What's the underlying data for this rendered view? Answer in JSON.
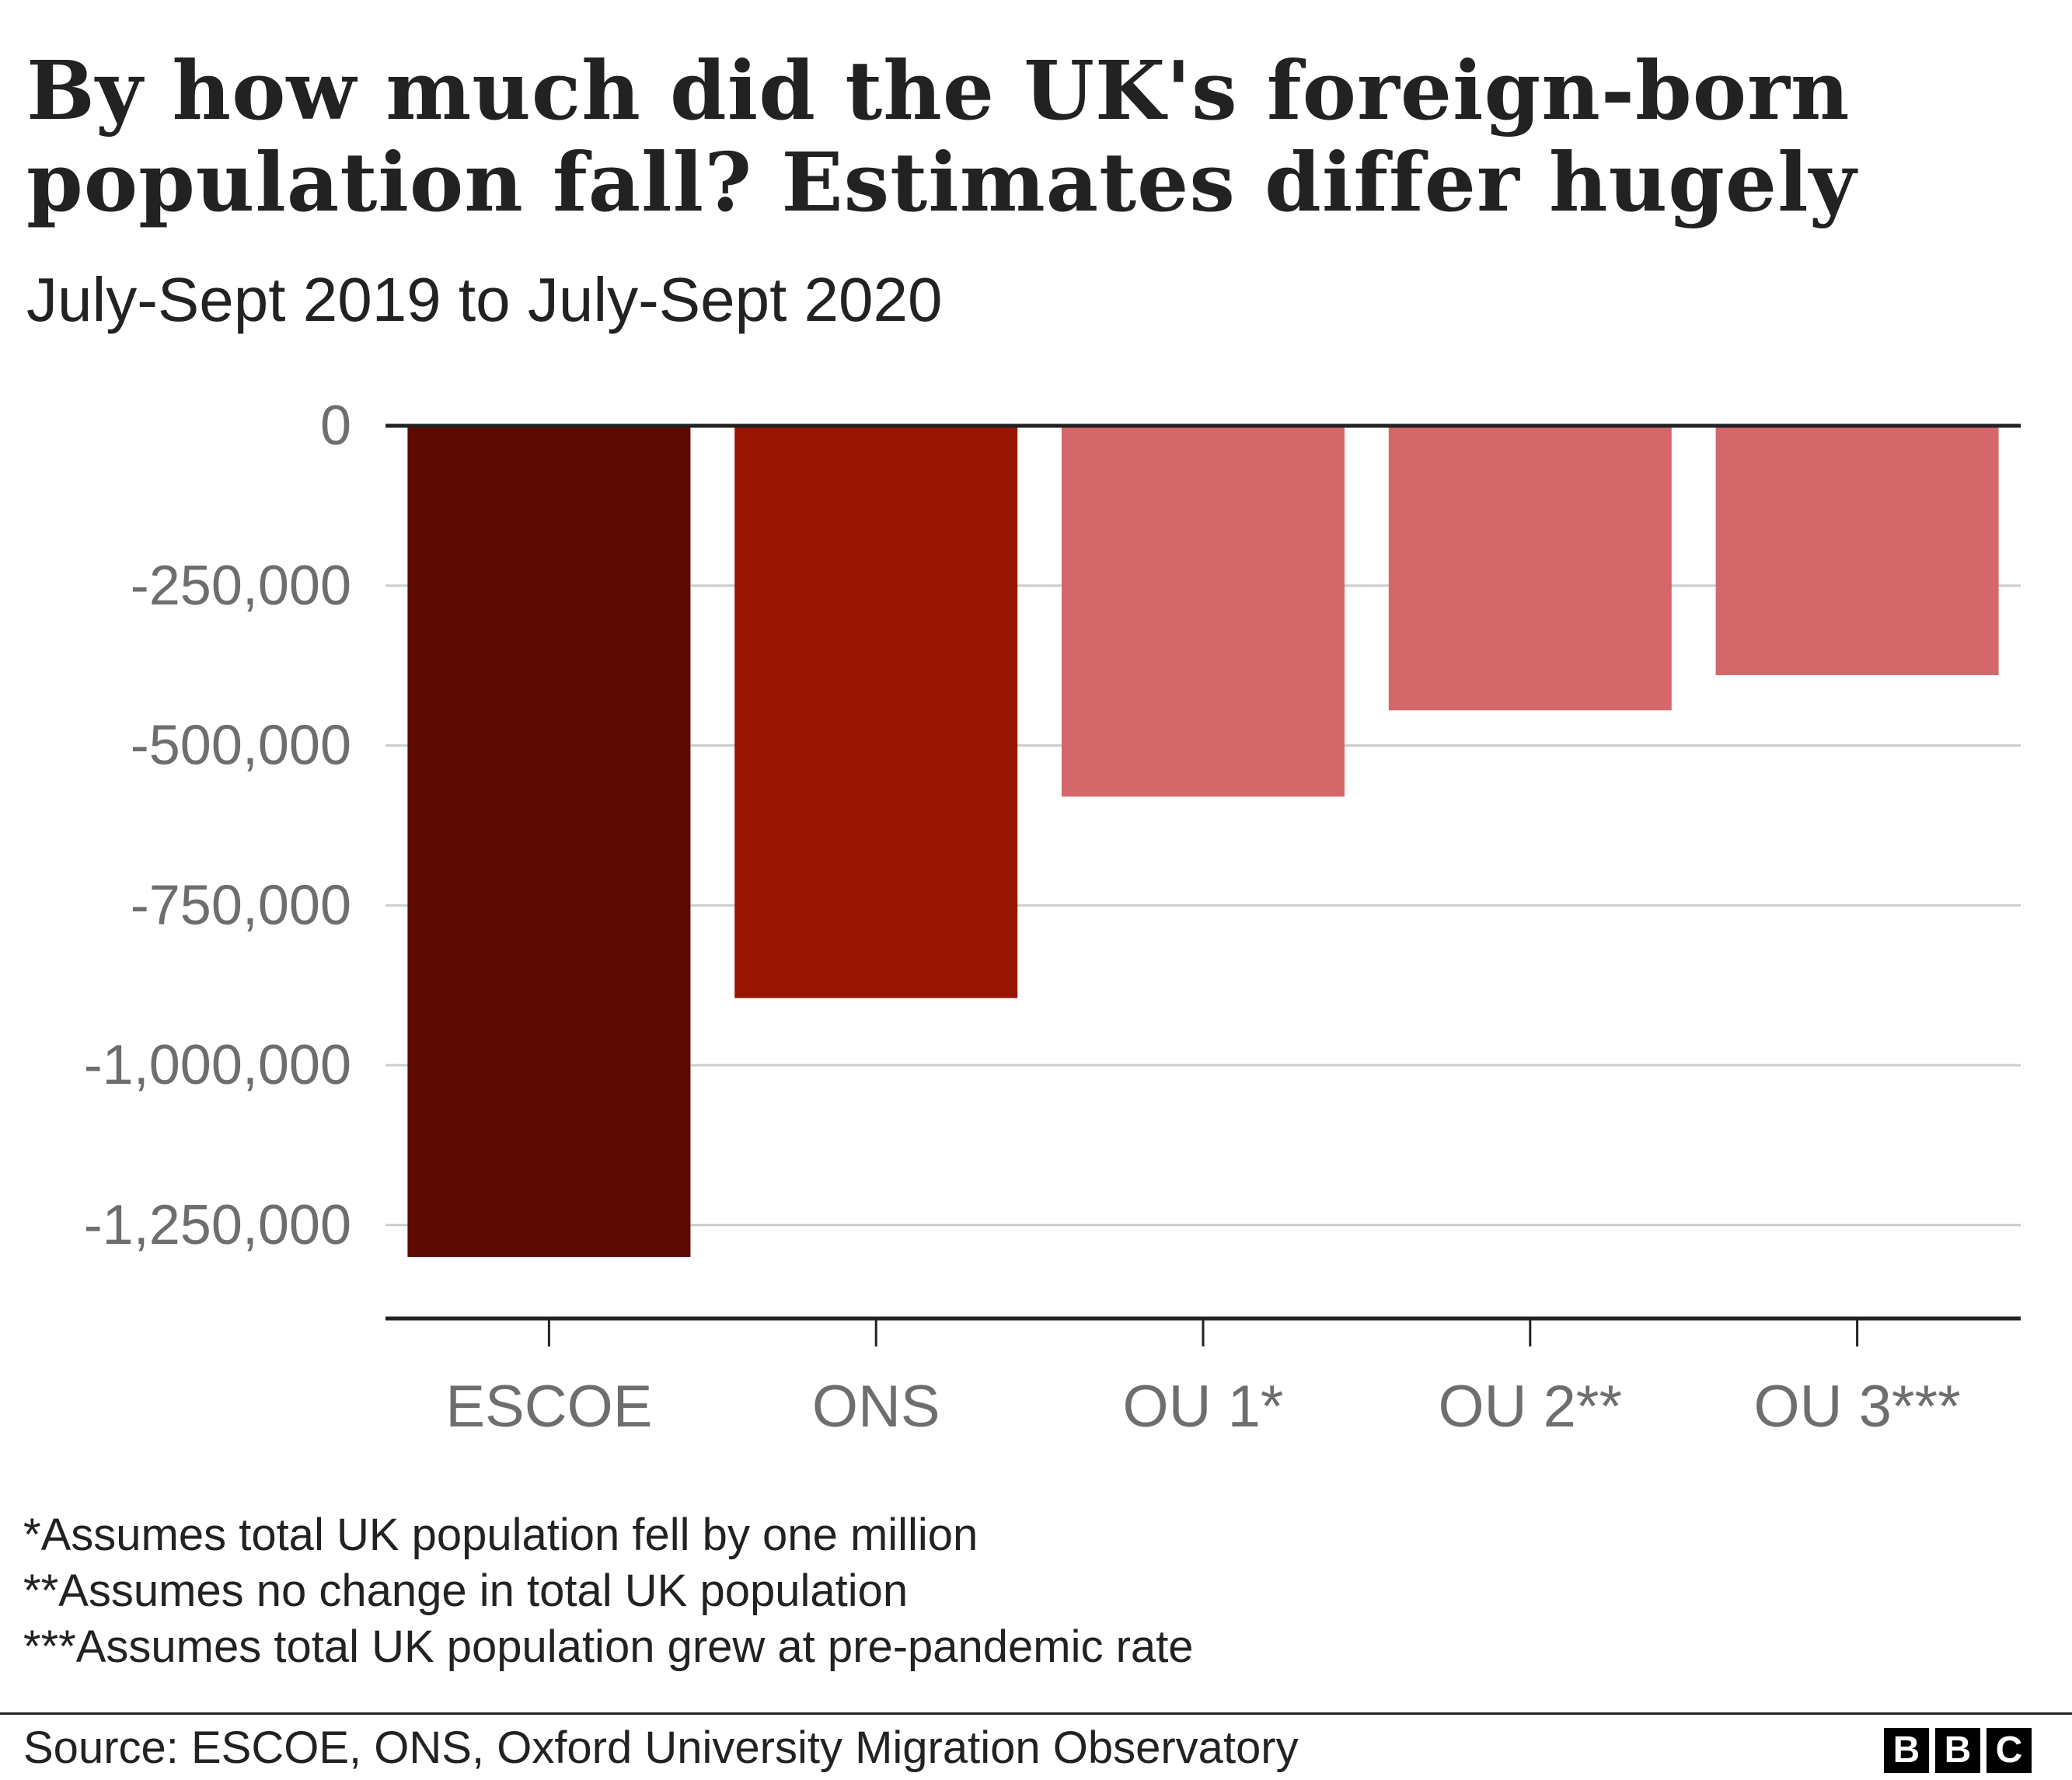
{
  "chart_data": {
    "type": "bar",
    "title": "By how much did the UK's foreign-born population fall? Estimates differ hugely",
    "subtitle": "July-Sept 2019 to July-Sept 2020",
    "categories": [
      "ESCOE",
      "ONS",
      "OU 1*",
      "OU 2**",
      "OU 3***"
    ],
    "values": [
      -1300000,
      -895000,
      -580000,
      -445000,
      -390000
    ],
    "colors": [
      "#5c0a02",
      "#991503",
      "#d4676a",
      "#d4676a",
      "#d4676a"
    ],
    "yticks": [
      0,
      -250000,
      -500000,
      -750000,
      -1000000,
      -1250000
    ],
    "ytick_labels": [
      "0",
      "-250,000",
      "-500,000",
      "-750,000",
      "-1,000,000",
      "-1,250,000"
    ],
    "ylim": [
      -1400000,
      0
    ],
    "grid": true,
    "xlabel": "",
    "ylabel": ""
  },
  "footnotes": [
    "*Assumes total UK population fell by one million",
    "**Assumes no change in total UK population",
    "***Assumes total UK population grew at pre-pandemic rate"
  ],
  "source": "Source: ESCOE, ONS, Oxford University Migration Observatory",
  "logo": [
    "B",
    "B",
    "C"
  ]
}
